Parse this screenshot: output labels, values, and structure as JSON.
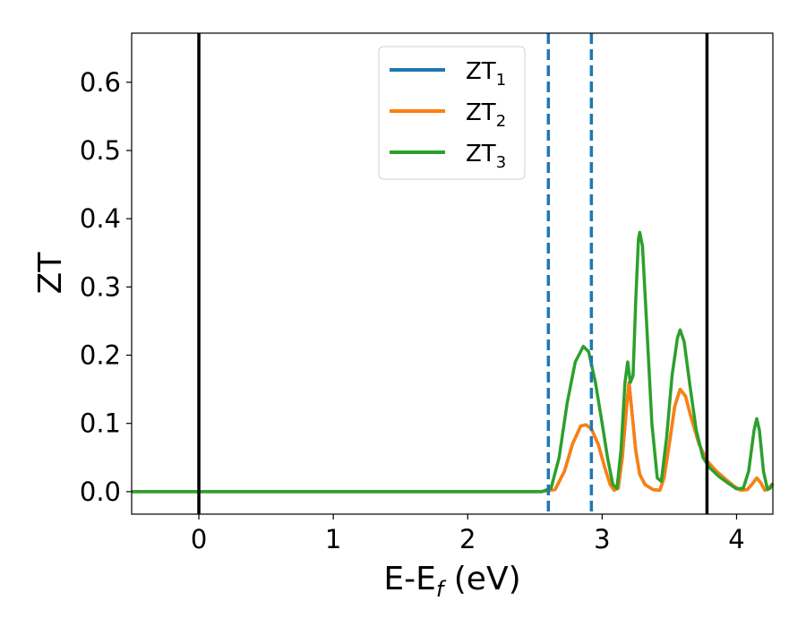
{
  "chart_data": {
    "type": "line",
    "xlabel": "E-E",
    "xlabel_sub": "f",
    "xlabel_unit": " (eV)",
    "ylabel": "ZT",
    "xlim": [
      -0.5,
      4.27
    ],
    "ylim": [
      -0.033,
      0.672
    ],
    "x_ticks": [
      0,
      1,
      2,
      3,
      4
    ],
    "x_tick_labels": [
      "0",
      "1",
      "2",
      "3",
      "4"
    ],
    "y_ticks": [
      0.0,
      0.1,
      0.2,
      0.3,
      0.4,
      0.5,
      0.6
    ],
    "y_tick_labels": [
      "0.0",
      "0.1",
      "0.2",
      "0.3",
      "0.4",
      "0.5",
      "0.6"
    ],
    "grid": false,
    "legend_position": "top-center",
    "vertical_lines": [
      {
        "x": 0.0,
        "style": "solid",
        "color": "#000000"
      },
      {
        "x": 3.78,
        "style": "solid",
        "color": "#000000"
      },
      {
        "x": 2.6,
        "style": "dashed",
        "color": "#1f77b4"
      },
      {
        "x": 2.92,
        "style": "dashed",
        "color": "#1f77b4"
      }
    ],
    "series": [
      {
        "name": "ZT",
        "name_sub": "1",
        "color": "#1f77b4",
        "points": [
          [
            -0.5,
            0
          ],
          [
            2.55,
            0
          ],
          [
            2.65,
            0.003
          ],
          [
            2.72,
            0.03
          ],
          [
            2.78,
            0.07
          ],
          [
            2.84,
            0.096
          ],
          [
            2.88,
            0.098
          ],
          [
            2.92,
            0.092
          ],
          [
            2.97,
            0.07
          ],
          [
            3.02,
            0.035
          ],
          [
            3.06,
            0.01
          ],
          [
            3.09,
            0.002
          ],
          [
            3.12,
            0.005
          ],
          [
            3.15,
            0.05
          ],
          [
            3.18,
            0.12
          ],
          [
            3.2,
            0.16
          ],
          [
            3.22,
            0.12
          ],
          [
            3.25,
            0.06
          ],
          [
            3.28,
            0.025
          ],
          [
            3.32,
            0.01
          ],
          [
            3.38,
            0.003
          ],
          [
            3.43,
            0.002
          ],
          [
            3.46,
            0.02
          ],
          [
            3.5,
            0.07
          ],
          [
            3.54,
            0.125
          ],
          [
            3.58,
            0.15
          ],
          [
            3.62,
            0.14
          ],
          [
            3.66,
            0.11
          ],
          [
            3.72,
            0.07
          ],
          [
            3.78,
            0.045
          ],
          [
            3.85,
            0.03
          ],
          [
            3.92,
            0.018
          ],
          [
            3.98,
            0.008
          ],
          [
            4.03,
            0.002
          ],
          [
            4.08,
            0.003
          ],
          [
            4.12,
            0.012
          ],
          [
            4.15,
            0.02
          ],
          [
            4.18,
            0.013
          ],
          [
            4.21,
            0.002
          ],
          [
            4.24,
            0.005
          ],
          [
            4.27,
            0.012
          ]
        ]
      },
      {
        "name": "ZT",
        "name_sub": "2",
        "color": "#ff7f0e",
        "points": [
          [
            -0.5,
            0
          ],
          [
            2.55,
            0
          ],
          [
            2.65,
            0.003
          ],
          [
            2.72,
            0.03
          ],
          [
            2.78,
            0.07
          ],
          [
            2.84,
            0.096
          ],
          [
            2.88,
            0.098
          ],
          [
            2.92,
            0.092
          ],
          [
            2.97,
            0.07
          ],
          [
            3.02,
            0.035
          ],
          [
            3.06,
            0.01
          ],
          [
            3.09,
            0.002
          ],
          [
            3.12,
            0.005
          ],
          [
            3.15,
            0.05
          ],
          [
            3.18,
            0.12
          ],
          [
            3.2,
            0.16
          ],
          [
            3.22,
            0.12
          ],
          [
            3.25,
            0.06
          ],
          [
            3.28,
            0.025
          ],
          [
            3.32,
            0.01
          ],
          [
            3.38,
            0.003
          ],
          [
            3.43,
            0.002
          ],
          [
            3.46,
            0.02
          ],
          [
            3.5,
            0.07
          ],
          [
            3.54,
            0.125
          ],
          [
            3.58,
            0.15
          ],
          [
            3.62,
            0.14
          ],
          [
            3.66,
            0.11
          ],
          [
            3.72,
            0.07
          ],
          [
            3.78,
            0.045
          ],
          [
            3.85,
            0.03
          ],
          [
            3.92,
            0.018
          ],
          [
            3.98,
            0.008
          ],
          [
            4.03,
            0.002
          ],
          [
            4.08,
            0.003
          ],
          [
            4.12,
            0.012
          ],
          [
            4.15,
            0.02
          ],
          [
            4.18,
            0.013
          ],
          [
            4.21,
            0.002
          ],
          [
            4.24,
            0.005
          ],
          [
            4.27,
            0.012
          ]
        ]
      },
      {
        "name": "ZT",
        "name_sub": "3",
        "color": "#2ca02c",
        "points": [
          [
            -0.5,
            0
          ],
          [
            2.55,
            0
          ],
          [
            2.62,
            0.005
          ],
          [
            2.68,
            0.05
          ],
          [
            2.74,
            0.13
          ],
          [
            2.8,
            0.19
          ],
          [
            2.86,
            0.213
          ],
          [
            2.9,
            0.205
          ],
          [
            2.95,
            0.16
          ],
          [
            3.0,
            0.1
          ],
          [
            3.04,
            0.05
          ],
          [
            3.08,
            0.01
          ],
          [
            3.11,
            0.005
          ],
          [
            3.14,
            0.06
          ],
          [
            3.17,
            0.16
          ],
          [
            3.19,
            0.19
          ],
          [
            3.21,
            0.16
          ],
          [
            3.23,
            0.17
          ],
          [
            3.25,
            0.28
          ],
          [
            3.27,
            0.37
          ],
          [
            3.28,
            0.38
          ],
          [
            3.3,
            0.36
          ],
          [
            3.33,
            0.25
          ],
          [
            3.37,
            0.1
          ],
          [
            3.41,
            0.02
          ],
          [
            3.44,
            0.015
          ],
          [
            3.48,
            0.08
          ],
          [
            3.52,
            0.17
          ],
          [
            3.56,
            0.225
          ],
          [
            3.58,
            0.237
          ],
          [
            3.61,
            0.22
          ],
          [
            3.65,
            0.16
          ],
          [
            3.7,
            0.09
          ],
          [
            3.75,
            0.05
          ],
          [
            3.8,
            0.035
          ],
          [
            3.87,
            0.022
          ],
          [
            3.94,
            0.012
          ],
          [
            4.0,
            0.004
          ],
          [
            4.05,
            0.005
          ],
          [
            4.09,
            0.03
          ],
          [
            4.13,
            0.09
          ],
          [
            4.15,
            0.107
          ],
          [
            4.17,
            0.09
          ],
          [
            4.2,
            0.03
          ],
          [
            4.23,
            0.003
          ],
          [
            4.25,
            0.005
          ],
          [
            4.27,
            0.012
          ]
        ]
      }
    ]
  }
}
